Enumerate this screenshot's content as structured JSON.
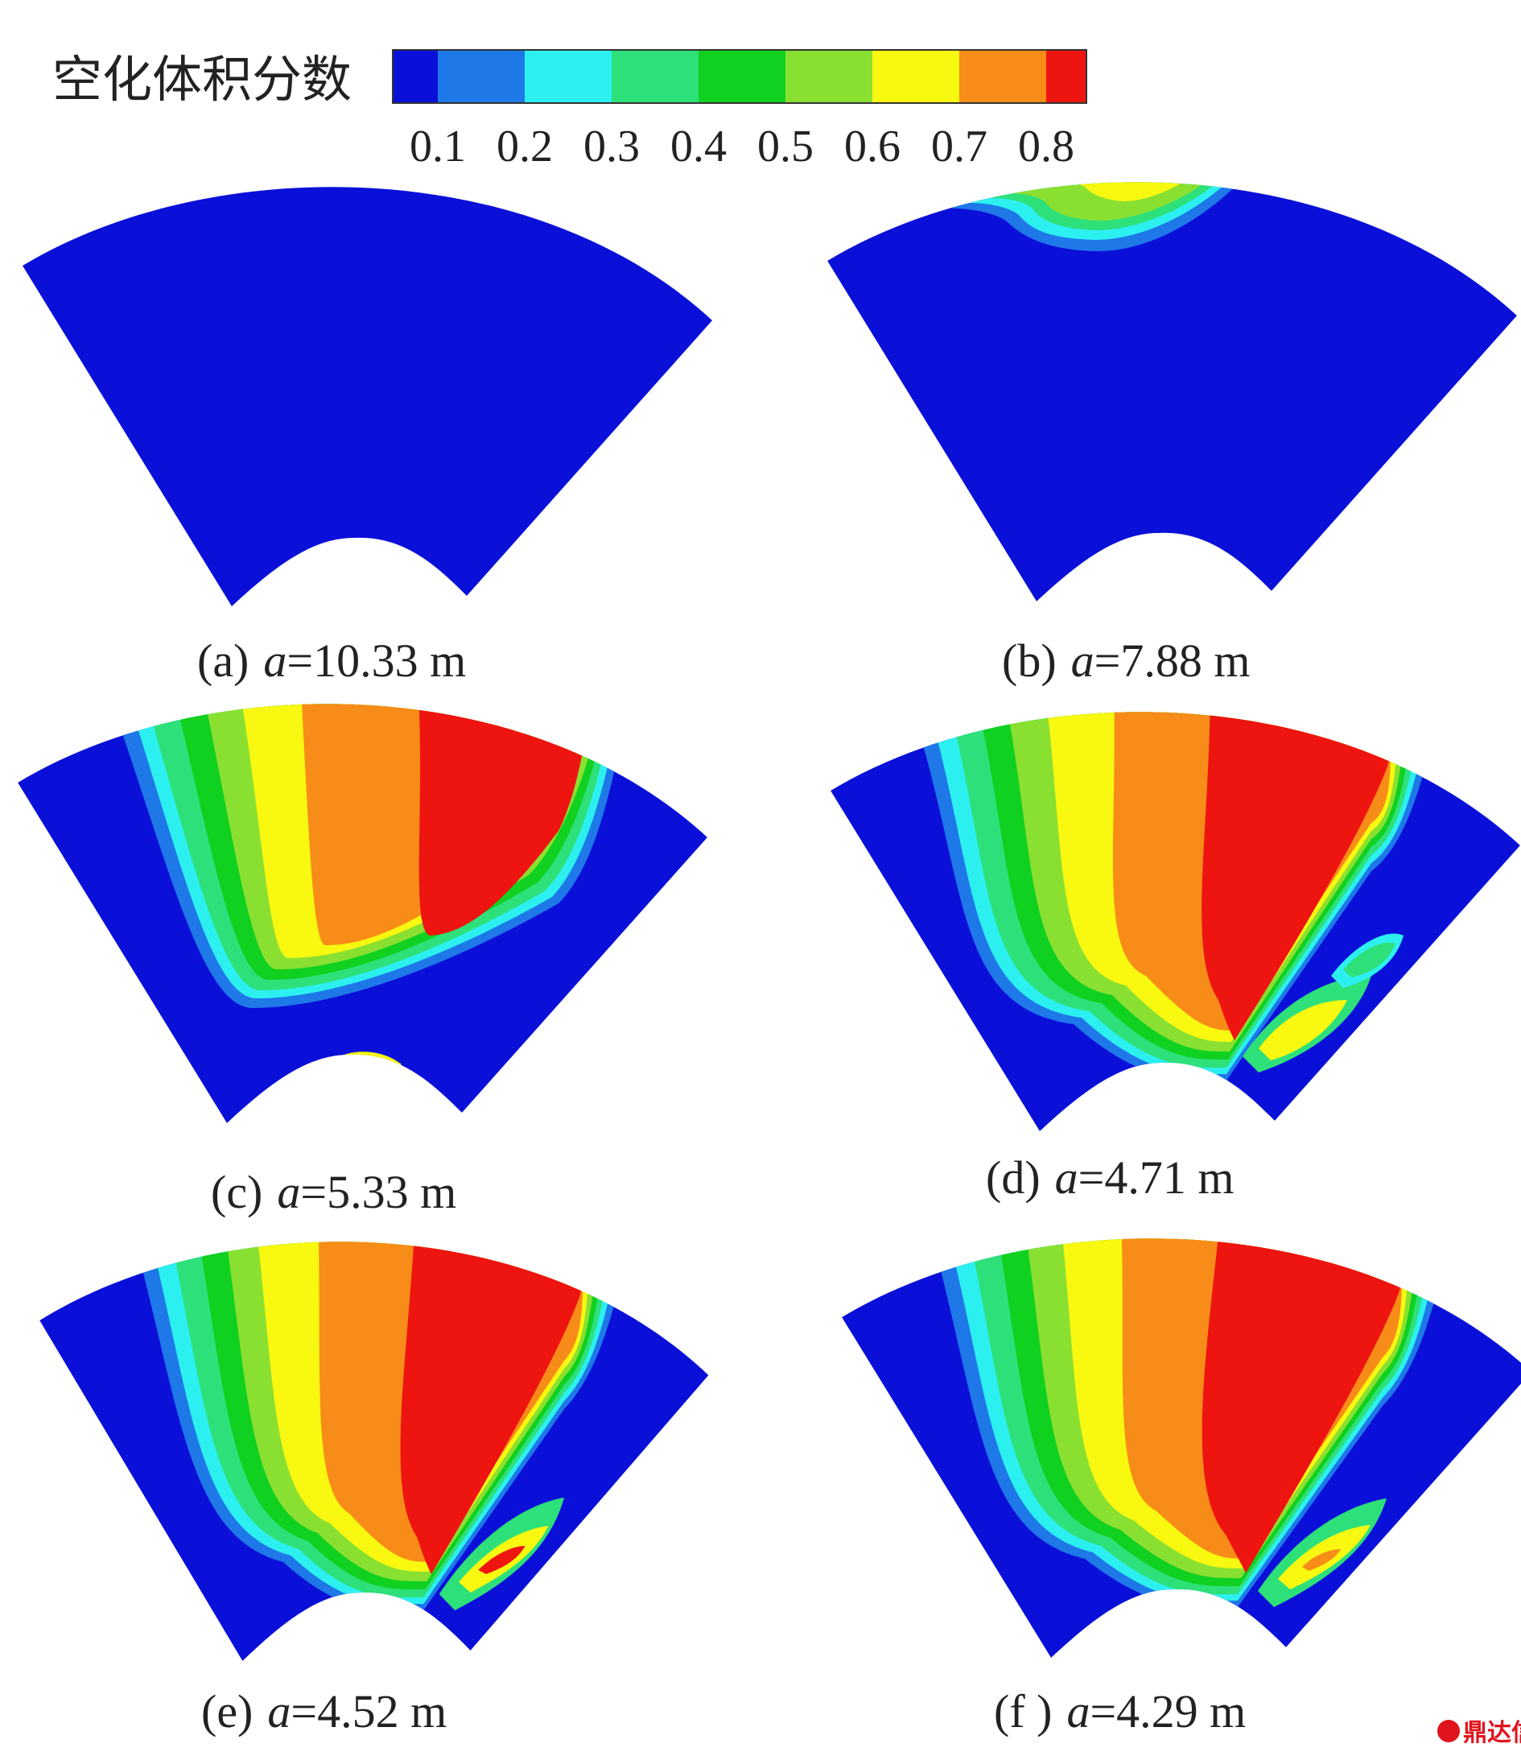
{
  "legend": {
    "title": "空化体积分数",
    "tick_labels": [
      "0.1",
      "0.2",
      "0.3",
      "0.4",
      "0.5",
      "0.6",
      "0.7",
      "0.8"
    ],
    "colors": [
      "#0a10d8",
      "#1e78e8",
      "#2cf0f0",
      "#2ee07a",
      "#10d020",
      "#8ae030",
      "#f8f810",
      "#f88c18",
      "#ee1410"
    ]
  },
  "panels": [
    {
      "label_prefix": "(a)",
      "label_var": "a",
      "label_value": "=10.33 m"
    },
    {
      "label_prefix": "(b)",
      "label_var": "a",
      "label_value": "=7.88 m"
    },
    {
      "label_prefix": "(c)",
      "label_var": "a",
      "label_value": "=5.33 m"
    },
    {
      "label_prefix": "(d)",
      "label_var": "a",
      "label_value": "=4.71 m"
    },
    {
      "label_prefix": "(e)",
      "label_var": "a",
      "label_value": "=4.52 m"
    },
    {
      "label_prefix": "(f )",
      "label_var": "a",
      "label_value": "=4.29 m"
    }
  ],
  "watermark": {
    "text": "鼎达信",
    "color": "#e0141e"
  }
}
